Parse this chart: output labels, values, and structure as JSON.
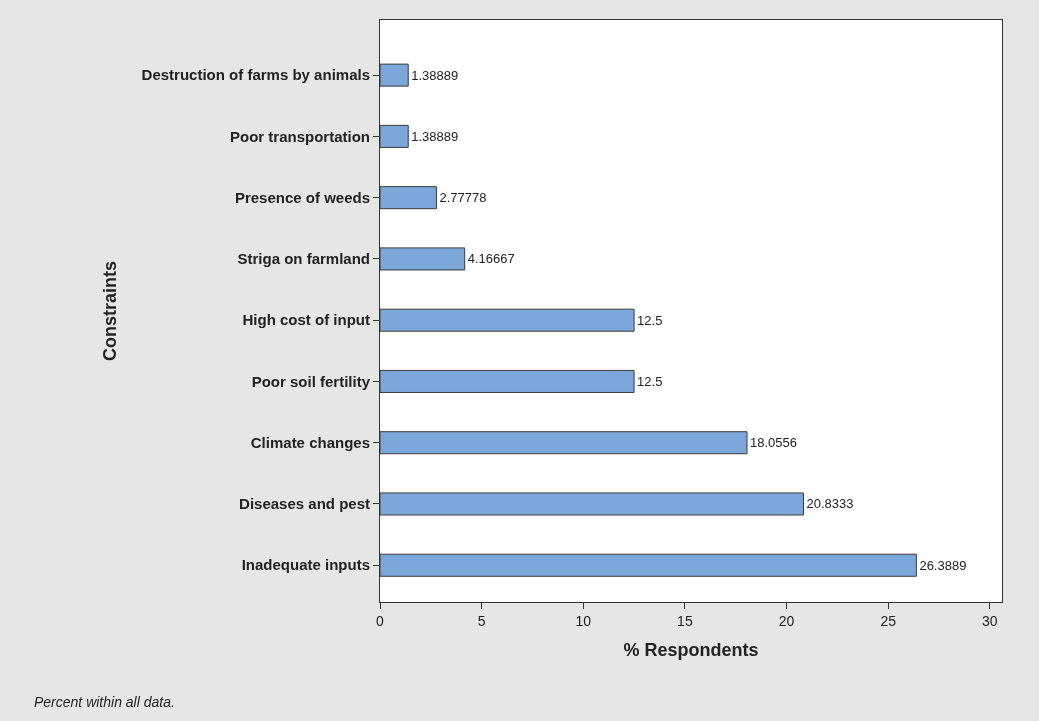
{
  "chart_data": {
    "type": "bar",
    "orientation": "horizontal",
    "categories": [
      "Destruction of farms by animals",
      "Poor transportation",
      "Presence of weeds",
      "Striga on farmland",
      "High cost of input",
      "Poor soil fertility",
      "Climate changes",
      "Diseases and pest",
      "Inadequate inputs"
    ],
    "values": [
      1.38889,
      1.38889,
      2.77778,
      4.16667,
      12.5,
      12.5,
      18.0556,
      20.8333,
      26.3889
    ],
    "color": "#7ba7db",
    "xlim": [
      0,
      30.6
    ],
    "xticks": [
      0,
      5,
      10,
      15,
      20,
      25,
      30
    ],
    "xlabel": "% Respondents",
    "ylabel": "Constraints",
    "data_labels": true,
    "annotations": [
      "Percent within all data."
    ]
  }
}
